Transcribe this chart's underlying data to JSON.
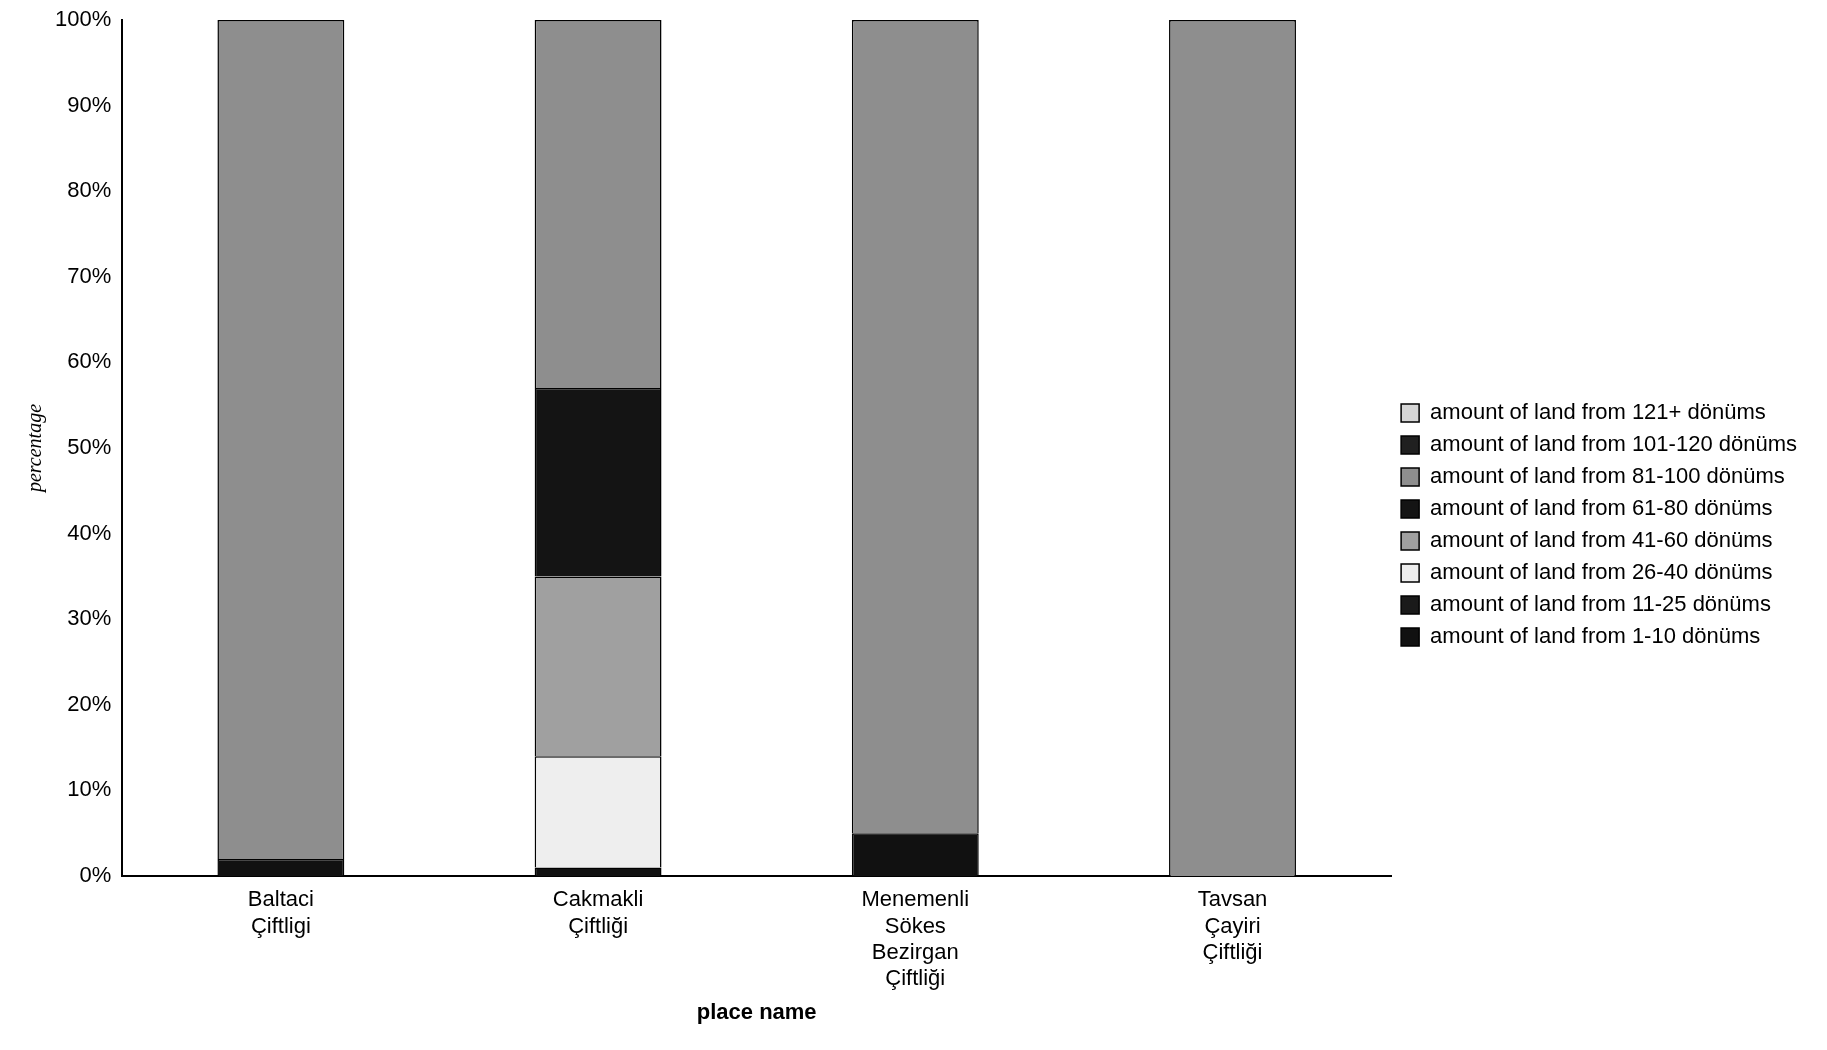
{
  "chart_data": {
    "type": "bar",
    "stacked": true,
    "xlabel": "place name",
    "ylabel": "percentage",
    "categories": [
      "Baltaci\nÇiftligi",
      "Cakmakli\nÇiftliği",
      "Menemenli\nSökes\nBezirgan\nÇiftliği",
      "Tavsan\nÇayiri\nÇiftliği"
    ],
    "series": [
      {
        "name": "amount of land from 1-10 dönüms",
        "color": "#111111",
        "values": [
          2,
          1,
          5,
          0
        ]
      },
      {
        "name": "amount of land from 11-25 dönüms",
        "color": "#1a1a1a",
        "values": [
          0,
          0,
          0,
          0
        ]
      },
      {
        "name": "amount of land from 26-40 dönüms",
        "color": "#eeeeee",
        "values": [
          0,
          13,
          0,
          0
        ]
      },
      {
        "name": "amount of land from 41-60 dönüms",
        "color": "#a0a0a0",
        "values": [
          0,
          21,
          0,
          0
        ]
      },
      {
        "name": "amount of land from 61-80 dönüms",
        "color": "#141414",
        "values": [
          0,
          22,
          0,
          0
        ]
      },
      {
        "name": "amount of land from 81-100 dönüms",
        "color": "#8e8e8e",
        "values": [
          98,
          43,
          95,
          100
        ]
      },
      {
        "name": "amount of land from 101-120 dönüms",
        "color": "#202020",
        "values": [
          0,
          0,
          0,
          0
        ]
      },
      {
        "name": "amount of land from 121+ dönüms",
        "color": "#d6d6d6",
        "values": [
          0,
          0,
          0,
          0
        ]
      }
    ],
    "ylim": [
      0,
      100
    ],
    "yticks": [
      {
        "value": 0,
        "label": "0%"
      },
      {
        "value": 10,
        "label": "10%"
      },
      {
        "value": 20,
        "label": "20%"
      },
      {
        "value": 30,
        "label": "30%"
      },
      {
        "value": 40,
        "label": "40%"
      },
      {
        "value": 50,
        "label": "50%"
      },
      {
        "value": 60,
        "label": "60%"
      },
      {
        "value": 70,
        "label": "70%"
      },
      {
        "value": 80,
        "label": "80%"
      },
      {
        "value": 90,
        "label": "90%"
      },
      {
        "value": 100,
        "label": "100%"
      }
    ],
    "grid": false,
    "legend": "right"
  }
}
